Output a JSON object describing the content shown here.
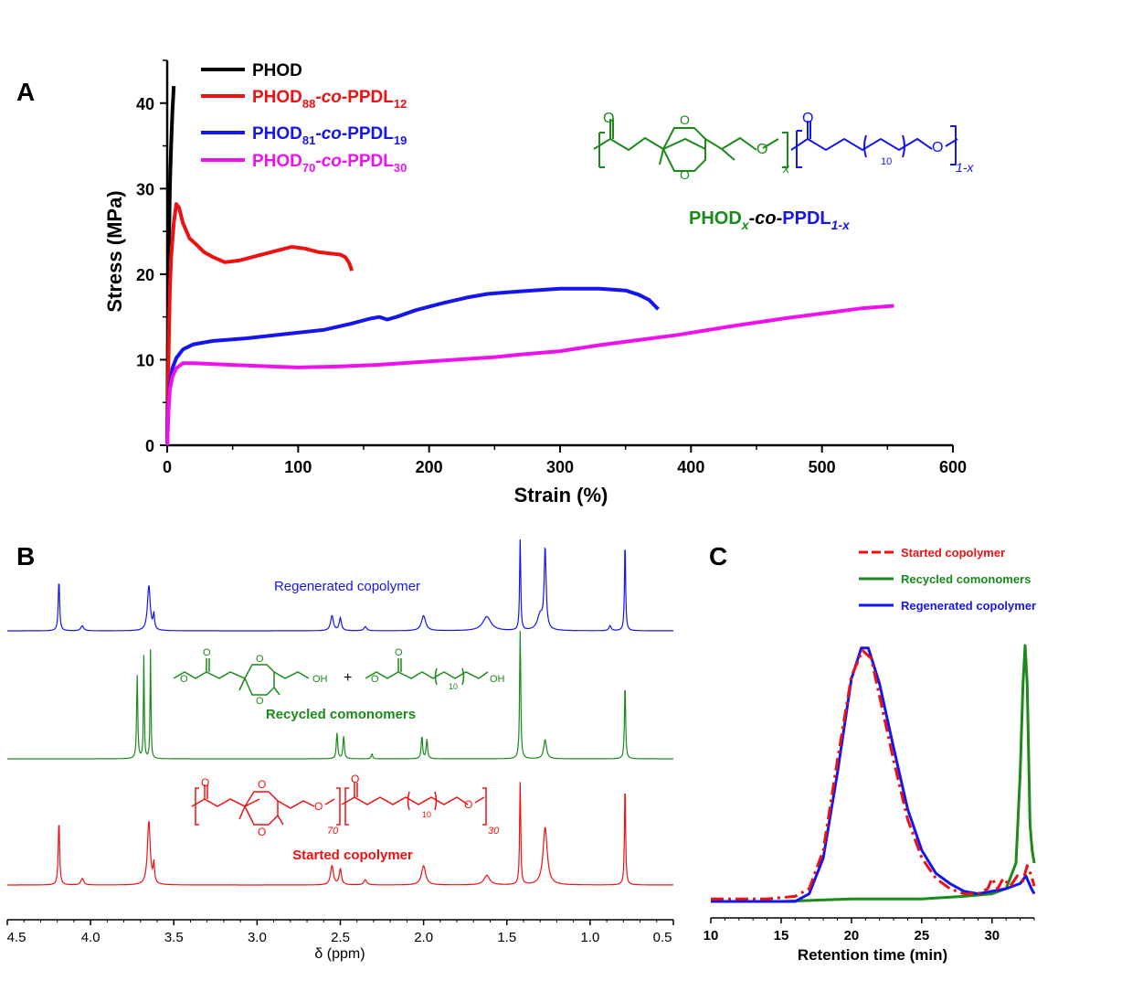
{
  "colors": {
    "black": "#000000",
    "red": "#ee1111",
    "blue": "#1515ee",
    "magenta": "#ee11ee",
    "green": "#1a8a1a"
  },
  "structures": {
    "a": {
      "name_prefix": "PHOD",
      "name_x": "x",
      "name_mid": "-co-",
      "name_suffix": "PPDL",
      "name_sub": "1-x",
      "rep_left": "x",
      "rep_right": "1-x",
      "o": "O",
      "n": "10"
    },
    "b": {
      "plus": "+",
      "oh": "OH",
      "o": "O",
      "n": "10"
    },
    "c": {
      "rep_left": "70",
      "rep_right": "30",
      "o": "O",
      "n": "10"
    }
  },
  "chart_data": [
    {
      "panel": "A",
      "type": "line",
      "xlabel": "Strain (%)",
      "ylabel": "Stress (MPa)",
      "xlim": [
        0,
        600
      ],
      "ylim": [
        0,
        45
      ],
      "xticks": [
        0,
        100,
        200,
        300,
        400,
        500,
        600
      ],
      "yticks": [
        0,
        10,
        20,
        30,
        40
      ],
      "legend_position": "top-left",
      "series": [
        {
          "name": "PHOD",
          "label_main": "PHOD",
          "color": "black",
          "points": [
            [
              0,
              0
            ],
            [
              0.5,
              10
            ],
            [
              1,
              18
            ],
            [
              1.5,
              25
            ],
            [
              2,
              30
            ],
            [
              3,
              35
            ],
            [
              4,
              39
            ],
            [
              5,
              42
            ]
          ]
        },
        {
          "name": "PHOD88-co-PPDL12",
          "label_main": "PHOD",
          "label_sub1": "88",
          "label_co": "-co-",
          "label_main2": "PPDL",
          "label_sub2": "12",
          "color": "red",
          "points": [
            [
              0,
              0
            ],
            [
              1,
              10
            ],
            [
              2,
              18
            ],
            [
              3,
              22
            ],
            [
              5,
              26
            ],
            [
              7,
              28.2
            ],
            [
              9,
              27.8
            ],
            [
              12,
              26
            ],
            [
              17,
              24.2
            ],
            [
              22,
              23.5
            ],
            [
              28,
              22.6
            ],
            [
              35,
              22
            ],
            [
              44,
              21.4
            ],
            [
              55,
              21.6
            ],
            [
              70,
              22.2
            ],
            [
              85,
              22.8
            ],
            [
              95,
              23.2
            ],
            [
              105,
              23
            ],
            [
              115,
              22.6
            ],
            [
              125,
              22.4
            ],
            [
              132,
              22.3
            ],
            [
              136,
              22
            ],
            [
              139,
              21.3
            ],
            [
              141,
              20.4
            ]
          ]
        },
        {
          "name": "PHOD81-co-PPDL19",
          "label_main": "PHOD",
          "label_sub1": "81",
          "label_co": "-co-",
          "label_main2": "PPDL",
          "label_sub2": "19",
          "color": "blue",
          "points": [
            [
              0,
              0
            ],
            [
              1,
              4
            ],
            [
              2,
              7
            ],
            [
              4,
              9
            ],
            [
              7,
              10.2
            ],
            [
              12,
              11.2
            ],
            [
              20,
              11.8
            ],
            [
              35,
              12.2
            ],
            [
              60,
              12.5
            ],
            [
              90,
              13
            ],
            [
              120,
              13.5
            ],
            [
              140,
              14.2
            ],
            [
              155,
              14.8
            ],
            [
              162,
              15
            ],
            [
              168,
              14.7
            ],
            [
              175,
              15
            ],
            [
              190,
              15.8
            ],
            [
              210,
              16.6
            ],
            [
              230,
              17.3
            ],
            [
              245,
              17.7
            ],
            [
              270,
              18
            ],
            [
              300,
              18.3
            ],
            [
              330,
              18.3
            ],
            [
              350,
              18.1
            ],
            [
              360,
              17.6
            ],
            [
              368,
              17
            ],
            [
              373,
              16.2
            ],
            [
              375,
              15.9
            ]
          ]
        },
        {
          "name": "PHOD70-co-PPDL30",
          "label_main": "PHOD",
          "label_sub1": "70",
          "label_co": "-co-",
          "label_main2": "PPDL",
          "label_sub2": "30",
          "color": "magenta",
          "points": [
            [
              0,
              0
            ],
            [
              1,
              4
            ],
            [
              2,
              6.5
            ],
            [
              4,
              8
            ],
            [
              7,
              9
            ],
            [
              12,
              9.6
            ],
            [
              20,
              9.6
            ],
            [
              50,
              9.4
            ],
            [
              80,
              9.2
            ],
            [
              100,
              9.1
            ],
            [
              130,
              9.2
            ],
            [
              160,
              9.4
            ],
            [
              190,
              9.7
            ],
            [
              230,
              10.1
            ],
            [
              250,
              10.3
            ],
            [
              270,
              10.6
            ],
            [
              300,
              11
            ],
            [
              330,
              11.7
            ],
            [
              360,
              12.3
            ],
            [
              390,
              12.9
            ],
            [
              430,
              13.9
            ],
            [
              470,
              14.8
            ],
            [
              500,
              15.4
            ],
            [
              530,
              16
            ],
            [
              555,
              16.3
            ]
          ]
        }
      ]
    },
    {
      "panel": "B",
      "type": "line",
      "xlabel": "δ (ppm)",
      "xlim": [
        4.5,
        0.5
      ],
      "reversed_x": true,
      "xticks": [
        "4.5",
        "4.0",
        "3.5",
        "3.0",
        "2.5",
        "2.0",
        "1.5",
        "1.0",
        "0.5"
      ],
      "series": [
        {
          "name": "Regenerated copolymer",
          "color": "blue",
          "peaks": [
            [
              4.19,
              1.0,
              0.005
            ],
            [
              4.05,
              0.1,
              0.01
            ],
            [
              3.65,
              0.9,
              0.01
            ],
            [
              3.62,
              0.3,
              0.005
            ],
            [
              2.55,
              0.3,
              0.01
            ],
            [
              2.5,
              0.25,
              0.008
            ],
            [
              2.35,
              0.08,
              0.01
            ],
            [
              2.0,
              0.3,
              0.015
            ],
            [
              1.62,
              0.28,
              0.03
            ],
            [
              1.42,
              1.8,
              0.004
            ],
            [
              1.3,
              0.3,
              0.02
            ],
            [
              1.27,
              1.6,
              0.007
            ],
            [
              0.88,
              0.1,
              0.008
            ],
            [
              0.79,
              1.8,
              0.004
            ]
          ]
        },
        {
          "name": "Recycled comonomers",
          "color": "green",
          "peaks": [
            [
              3.72,
              1.3,
              0.004
            ],
            [
              3.68,
              1.6,
              0.003
            ],
            [
              3.64,
              1.7,
              0.003
            ],
            [
              2.52,
              0.4,
              0.005
            ],
            [
              2.48,
              0.35,
              0.005
            ],
            [
              2.31,
              0.08,
              0.005
            ],
            [
              2.01,
              0.35,
              0.005
            ],
            [
              1.98,
              0.3,
              0.005
            ],
            [
              1.42,
              2.0,
              0.004
            ],
            [
              1.27,
              0.3,
              0.01
            ],
            [
              0.79,
              1.2,
              0.004
            ]
          ]
        },
        {
          "name": "Started copolymer",
          "color": "red",
          "peaks": [
            [
              4.19,
              1.0,
              0.005
            ],
            [
              4.05,
              0.1,
              0.01
            ],
            [
              3.65,
              1.0,
              0.01
            ],
            [
              3.62,
              0.3,
              0.005
            ],
            [
              2.55,
              0.3,
              0.01
            ],
            [
              2.5,
              0.25,
              0.008
            ],
            [
              2.35,
              0.08,
              0.01
            ],
            [
              2.0,
              0.3,
              0.015
            ],
            [
              1.62,
              0.15,
              0.02
            ],
            [
              1.42,
              1.6,
              0.004
            ],
            [
              1.27,
              0.9,
              0.015
            ],
            [
              0.79,
              1.6,
              0.004
            ]
          ]
        }
      ]
    },
    {
      "panel": "C",
      "type": "line",
      "xlabel": "Retention time (min)",
      "xlim": [
        10,
        33
      ],
      "xticks": [
        10,
        15,
        20,
        25,
        30
      ],
      "legend_position": "top-right",
      "series": [
        {
          "name": "Started copolymer",
          "color": "red",
          "dash": true,
          "points": [
            [
              10,
              0.01
            ],
            [
              14,
              0.01
            ],
            [
              16,
              0.02
            ],
            [
              17,
              0.05
            ],
            [
              18,
              0.2
            ],
            [
              19,
              0.55
            ],
            [
              20,
              0.88
            ],
            [
              20.8,
              0.98
            ],
            [
              21.4,
              0.95
            ],
            [
              22,
              0.8
            ],
            [
              23,
              0.55
            ],
            [
              24,
              0.32
            ],
            [
              25,
              0.17
            ],
            [
              26,
              0.09
            ],
            [
              27,
              0.05
            ],
            [
              28,
              0.03
            ],
            [
              29,
              0.03
            ],
            [
              29.7,
              0.05
            ],
            [
              30,
              0.09
            ],
            [
              30.4,
              0.05
            ],
            [
              30.8,
              0.09
            ],
            [
              31.3,
              0.06
            ],
            [
              31.8,
              0.1
            ],
            [
              32.2,
              0.08
            ],
            [
              32.5,
              0.14
            ],
            [
              32.8,
              0.1
            ],
            [
              33,
              0.06
            ]
          ]
        },
        {
          "name": "Recycled comonomers",
          "color": "green",
          "points": [
            [
              10,
              0.0
            ],
            [
              15,
              0.0
            ],
            [
              20,
              0.01
            ],
            [
              25,
              0.01
            ],
            [
              28,
              0.02
            ],
            [
              30,
              0.03
            ],
            [
              31,
              0.05
            ],
            [
              31.7,
              0.15
            ],
            [
              32.0,
              0.5
            ],
            [
              32.2,
              0.85
            ],
            [
              32.35,
              1.0
            ],
            [
              32.5,
              0.85
            ],
            [
              32.7,
              0.3
            ],
            [
              32.85,
              0.2
            ],
            [
              33,
              0.15
            ]
          ]
        },
        {
          "name": "Regenerated copolymer",
          "color": "blue",
          "points": [
            [
              10,
              0.0
            ],
            [
              14,
              0.0
            ],
            [
              16,
              0.0
            ],
            [
              17,
              0.03
            ],
            [
              18,
              0.17
            ],
            [
              19,
              0.5
            ],
            [
              20,
              0.87
            ],
            [
              20.7,
              0.99
            ],
            [
              21.2,
              0.99
            ],
            [
              22,
              0.85
            ],
            [
              23,
              0.6
            ],
            [
              24,
              0.36
            ],
            [
              25,
              0.2
            ],
            [
              26,
              0.11
            ],
            [
              27,
              0.07
            ],
            [
              28,
              0.04
            ],
            [
              29,
              0.03
            ],
            [
              30,
              0.04
            ],
            [
              31,
              0.05
            ],
            [
              32,
              0.07
            ],
            [
              32.4,
              0.1
            ],
            [
              32.8,
              0.05
            ],
            [
              33,
              0.03
            ]
          ]
        }
      ]
    }
  ]
}
